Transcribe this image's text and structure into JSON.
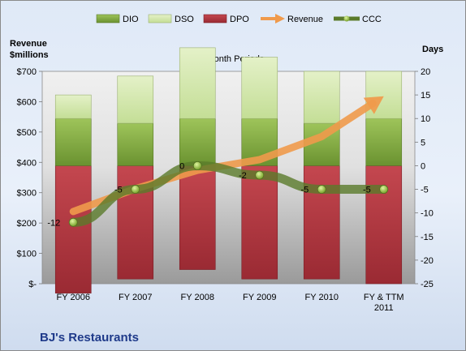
{
  "chart_data": {
    "type": "bar",
    "title": "12-Month Periods",
    "footer_title": "BJ's Restaurants",
    "left_axis_label": [
      "Revenue",
      "$millions"
    ],
    "right_axis_label": "Days",
    "categories": [
      [
        "FY 2006"
      ],
      [
        "FY 2007"
      ],
      [
        "FY 2008"
      ],
      [
        "FY 2009"
      ],
      [
        "FY 2010"
      ],
      [
        "FY & TTM",
        "2011"
      ]
    ],
    "left_axis": {
      "min": 0,
      "max": 700,
      "step": 100,
      "tick_labels": [
        "$-",
        "$100",
        "$200",
        "$300",
        "$400",
        "$500",
        "$600",
        "$700"
      ]
    },
    "right_axis": {
      "min": -25,
      "max": 20,
      "step": 5
    },
    "legend_position": "top",
    "legend": [
      "DIO",
      "DSO",
      "DPO",
      "Revenue",
      "CCC"
    ],
    "series": [
      {
        "name": "DIO",
        "kind": "stacked-bar-days",
        "color": "#7fa83a",
        "values": [
          10,
          9,
          10,
          10,
          9,
          10
        ]
      },
      {
        "name": "DSO",
        "kind": "stacked-bar-days",
        "color": "#cbe3a0",
        "values": [
          5,
          10,
          15,
          13,
          11,
          10
        ]
      },
      {
        "name": "DPO",
        "kind": "negative-bar-days",
        "color": "#b0303a",
        "values": [
          -27,
          -24,
          -22,
          -24,
          -24,
          -25
        ]
      },
      {
        "name": "Revenue",
        "kind": "arrow-line-millions",
        "color": "#f09a4b",
        "values": [
          238,
          313,
          374,
          409,
          485,
          618
        ]
      },
      {
        "name": "CCC",
        "kind": "line-days",
        "color": "#5a7a2a",
        "values": [
          -12,
          -5,
          0,
          -2,
          -5,
          -5
        ],
        "labels": [
          "-12",
          "-5",
          "0",
          "-2",
          "-5",
          "-5"
        ]
      }
    ]
  }
}
